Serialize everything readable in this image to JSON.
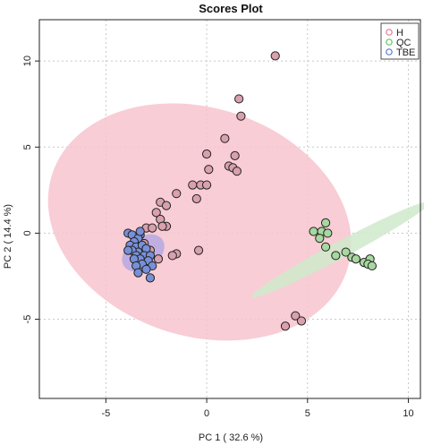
{
  "chart_data": {
    "type": "scatter",
    "title": "Scores Plot",
    "xlabel": "PC 1 ( 32.6 %)",
    "ylabel": "PC 2 ( 14.4 %)",
    "xlim": [
      -8.3,
      10.6
    ],
    "ylim": [
      -9.6,
      12.4
    ],
    "xticks": [
      -5,
      0,
      5,
      10
    ],
    "yticks": [
      -5,
      0,
      5,
      10
    ],
    "grid": true,
    "legend_position": "top-right",
    "series": [
      {
        "name": "H",
        "color": "#e6788f",
        "fill": "#d9a0ad",
        "ellipse_fill": "#f7c4cf",
        "ellipse": {
          "cx": -0.35,
          "cy": 0.65,
          "rx": 6.1,
          "ry": 8.3,
          "angle": -72
        },
        "points": [
          [
            3.4,
            10.3
          ],
          [
            1.6,
            7.8
          ],
          [
            1.7,
            6.8
          ],
          [
            0.9,
            5.5
          ],
          [
            0.0,
            4.6
          ],
          [
            1.4,
            4.5
          ],
          [
            0.1,
            3.7
          ],
          [
            1.1,
            3.9
          ],
          [
            1.3,
            3.8
          ],
          [
            1.5,
            3.6
          ],
          [
            -1.5,
            2.3
          ],
          [
            -0.7,
            2.8
          ],
          [
            -0.3,
            2.8
          ],
          [
            0.0,
            2.8
          ],
          [
            -2.3,
            1.8
          ],
          [
            -2.5,
            1.2
          ],
          [
            -0.5,
            2.0
          ],
          [
            -2.0,
            1.6
          ],
          [
            -2.3,
            0.8
          ],
          [
            -3.0,
            0.3
          ],
          [
            -2.7,
            0.3
          ],
          [
            -2.0,
            0.4
          ],
          [
            -2.2,
            0.4
          ],
          [
            -1.5,
            -1.2
          ],
          [
            -1.7,
            -1.3
          ],
          [
            -0.4,
            -1.0
          ],
          [
            4.4,
            -4.8
          ],
          [
            4.7,
            -5.1
          ],
          [
            3.9,
            -5.4
          ],
          [
            -3.1,
            -0.6
          ],
          [
            -2.8,
            -1.0
          ],
          [
            -2.4,
            -1.5
          ],
          [
            -2.9,
            -1.8
          ]
        ]
      },
      {
        "name": "QC",
        "color": "#63c463",
        "fill": "#a7d8a0",
        "ellipse_fill": "#cfeacb",
        "ellipse": {
          "cx": 6.65,
          "cy": -0.95,
          "rx": 5.4,
          "ry": 0.45,
          "angle": -28
        },
        "points": [
          [
            5.9,
            0.6
          ],
          [
            5.3,
            0.1
          ],
          [
            5.7,
            0.1
          ],
          [
            6.0,
            0.0
          ],
          [
            5.6,
            -0.3
          ],
          [
            5.9,
            -0.8
          ],
          [
            6.4,
            -1.3
          ],
          [
            6.9,
            -1.1
          ],
          [
            7.2,
            -1.4
          ],
          [
            7.4,
            -1.5
          ],
          [
            7.8,
            -1.7
          ],
          [
            8.1,
            -1.5
          ],
          [
            8.0,
            -1.8
          ],
          [
            8.2,
            -1.9
          ]
        ]
      },
      {
        "name": "TBE",
        "color": "#5b79d6",
        "fill": "#7890d8",
        "ellipse_fill": "#b7a8e2",
        "ellipse": {
          "cx": -3.15,
          "cy": -1.15,
          "rx": 1.25,
          "ry": 0.85,
          "angle": -35
        },
        "points": [
          [
            -3.9,
            0.0
          ],
          [
            -3.7,
            -0.1
          ],
          [
            -3.3,
            -0.1
          ],
          [
            -3.4,
            -0.3
          ],
          [
            -3.6,
            -0.5
          ],
          [
            -3.8,
            -0.7
          ],
          [
            -3.5,
            -0.8
          ],
          [
            -3.2,
            -0.7
          ],
          [
            -3.0,
            -0.9
          ],
          [
            -3.4,
            -1.1
          ],
          [
            -3.7,
            -1.0
          ],
          [
            -3.5,
            -1.3
          ],
          [
            -3.1,
            -1.3
          ],
          [
            -2.8,
            -1.3
          ],
          [
            -3.3,
            -1.5
          ],
          [
            -3.6,
            -1.5
          ],
          [
            -2.9,
            -1.6
          ],
          [
            -3.2,
            -1.8
          ],
          [
            -3.5,
            -1.9
          ],
          [
            -2.7,
            -1.9
          ],
          [
            -3.0,
            -2.1
          ],
          [
            -2.8,
            -2.6
          ],
          [
            -3.4,
            -2.3
          ],
          [
            -3.3,
            0.1
          ],
          [
            -3.9,
            -1.0
          ]
        ]
      }
    ]
  }
}
